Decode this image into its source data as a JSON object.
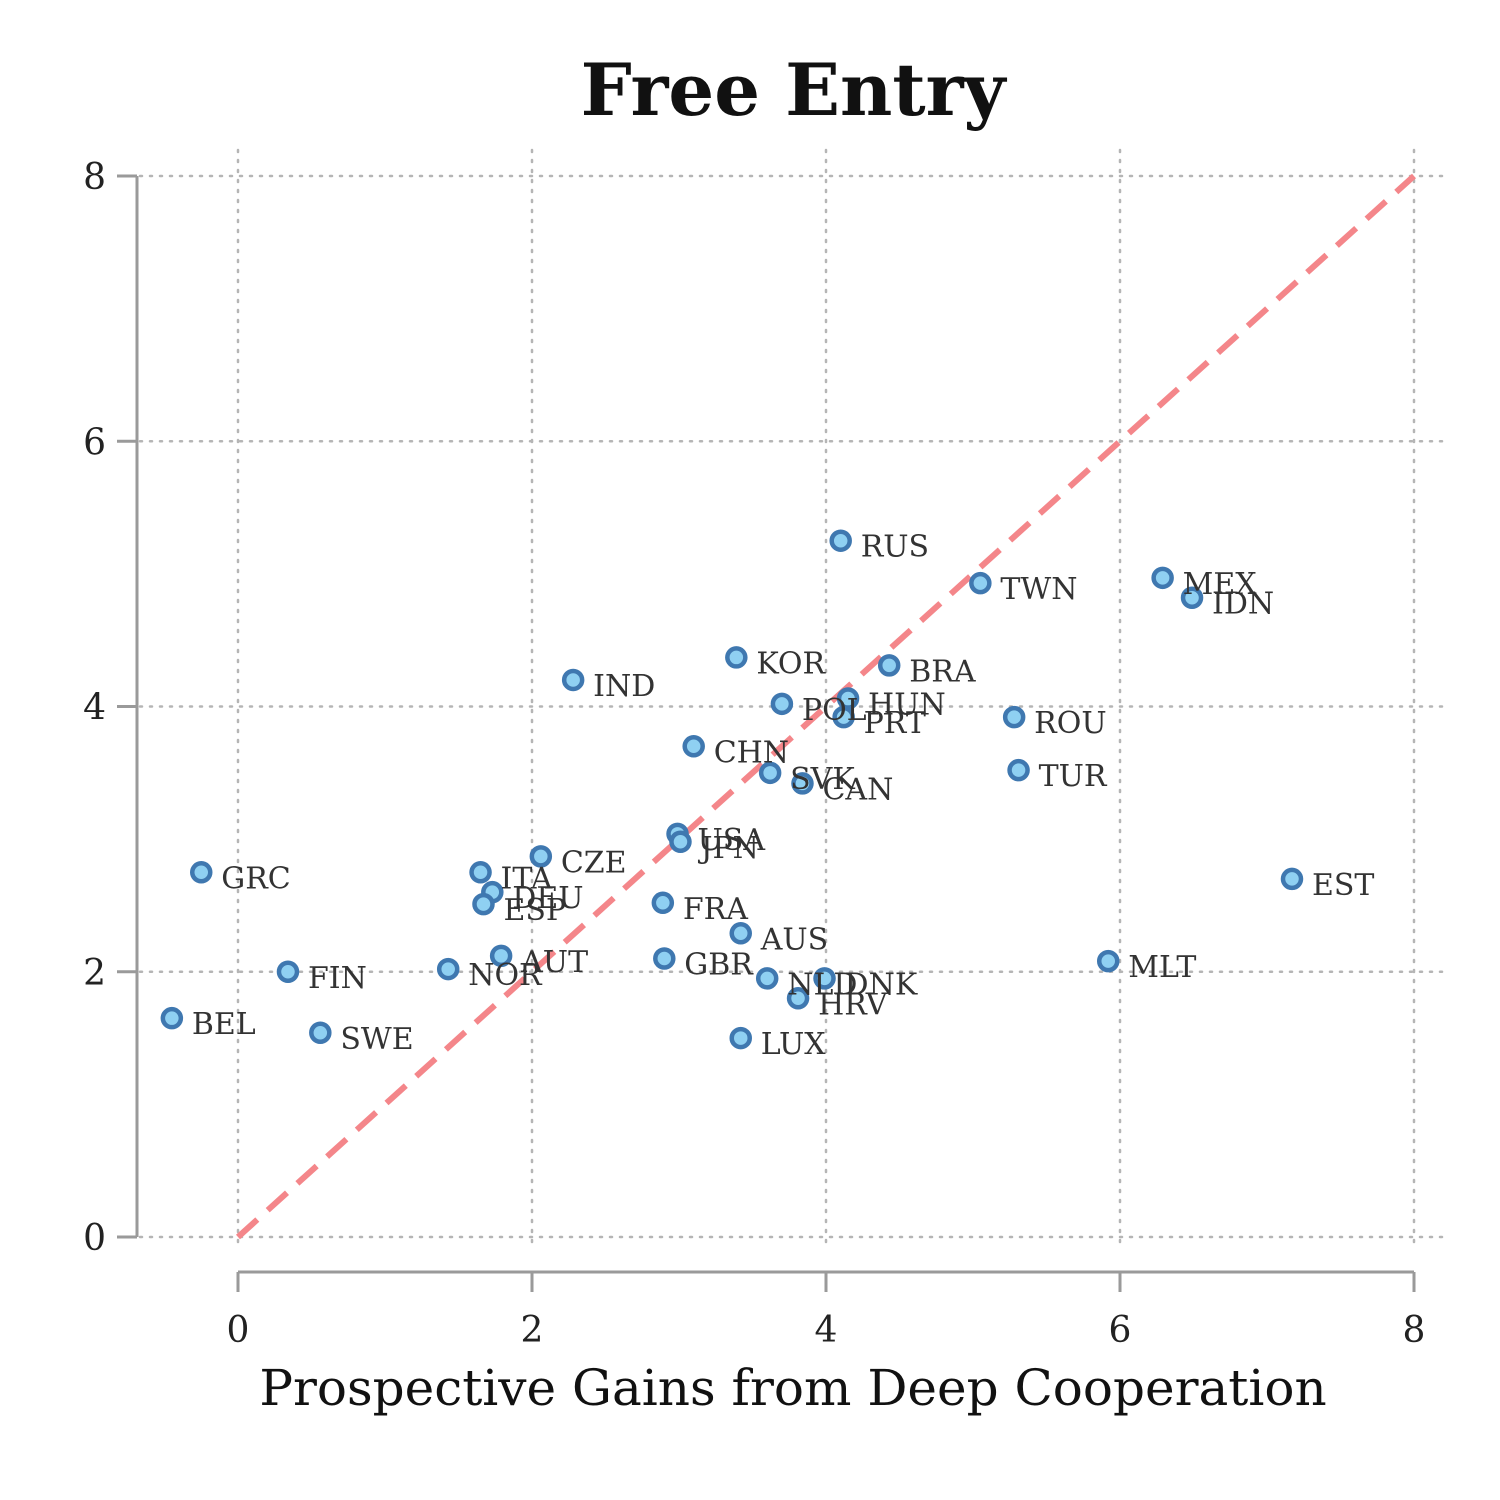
{
  "chart_data": {
    "type": "scatter",
    "title": "Free Entry",
    "xlabel": "Prospective Gains from Deep Cooperation",
    "ylabel": "",
    "xlim": [
      -0.7,
      8.2
    ],
    "ylim": [
      0,
      8
    ],
    "xticks": [
      0,
      2,
      4,
      6,
      8
    ],
    "yticks": [
      0,
      2,
      4,
      6,
      8
    ],
    "grid": true,
    "reference_line": {
      "x": [
        0,
        8
      ],
      "y": [
        0,
        8
      ],
      "style": "dashed",
      "color": "#f4868a"
    },
    "colors": {
      "marker_fill": "#8fd0f2",
      "marker_edge": "#3f78b0",
      "reference": "#f4868a"
    },
    "points": [
      {
        "label": "RUS",
        "x": 4.1,
        "y": 5.25
      },
      {
        "label": "TWN",
        "x": 5.05,
        "y": 4.93
      },
      {
        "label": "MEX",
        "x": 6.29,
        "y": 4.97
      },
      {
        "label": "IDN",
        "x": 6.49,
        "y": 4.82
      },
      {
        "label": "KOR",
        "x": 3.39,
        "y": 4.37
      },
      {
        "label": "BRA",
        "x": 4.43,
        "y": 4.31
      },
      {
        "label": "IND",
        "x": 2.28,
        "y": 4.2
      },
      {
        "label": "POL",
        "x": 3.7,
        "y": 4.02
      },
      {
        "label": "HUN",
        "x": 4.15,
        "y": 4.06
      },
      {
        "label": "PRT",
        "x": 4.12,
        "y": 3.92
      },
      {
        "label": "ROU",
        "x": 5.28,
        "y": 3.92
      },
      {
        "label": "CHN",
        "x": 3.1,
        "y": 3.7
      },
      {
        "label": "SVK",
        "x": 3.62,
        "y": 3.5
      },
      {
        "label": "CAN",
        "x": 3.84,
        "y": 3.42
      },
      {
        "label": "TUR",
        "x": 5.31,
        "y": 3.52
      },
      {
        "label": "USA",
        "x": 2.99,
        "y": 3.04
      },
      {
        "label": "JPN",
        "x": 3.01,
        "y": 2.98
      },
      {
        "label": "CZE",
        "x": 2.06,
        "y": 2.87
      },
      {
        "label": "GRC",
        "x": -0.25,
        "y": 2.75
      },
      {
        "label": "ITA",
        "x": 1.65,
        "y": 2.75
      },
      {
        "label": "DEU",
        "x": 1.73,
        "y": 2.6
      },
      {
        "label": "ESP",
        "x": 1.67,
        "y": 2.51
      },
      {
        "label": "EST",
        "x": 7.17,
        "y": 2.7
      },
      {
        "label": "FRA",
        "x": 2.89,
        "y": 2.52
      },
      {
        "label": "AUS",
        "x": 3.42,
        "y": 2.29
      },
      {
        "label": "AUT",
        "x": 1.79,
        "y": 2.12
      },
      {
        "label": "GBR",
        "x": 2.9,
        "y": 2.1
      },
      {
        "label": "MLT",
        "x": 5.92,
        "y": 2.08
      },
      {
        "label": "FIN",
        "x": 0.34,
        "y": 2.0
      },
      {
        "label": "NOR",
        "x": 1.43,
        "y": 2.02
      },
      {
        "label": "NLD",
        "x": 3.6,
        "y": 1.95
      },
      {
        "label": "DNK",
        "x": 3.99,
        "y": 1.95
      },
      {
        "label": "HRV",
        "x": 3.81,
        "y": 1.8
      },
      {
        "label": "BEL",
        "x": -0.45,
        "y": 1.65
      },
      {
        "label": "SWE",
        "x": 0.56,
        "y": 1.54
      },
      {
        "label": "LUX",
        "x": 3.42,
        "y": 1.5
      }
    ]
  }
}
